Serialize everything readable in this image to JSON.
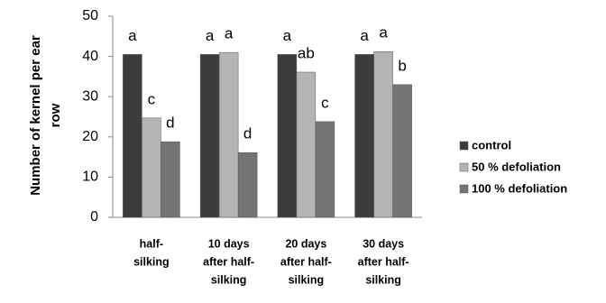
{
  "chart_data": {
    "type": "bar",
    "y_label": [
      "Number of kernel per ear",
      "row"
    ],
    "categories": [
      [
        "half-",
        "silking"
      ],
      [
        "10 days",
        "after half-",
        "silking"
      ],
      [
        "20 days",
        "after half-",
        "silking"
      ],
      [
        "30 days",
        "after half-",
        "silking"
      ]
    ],
    "series": [
      {
        "name": "control",
        "color": "#3c3c3c",
        "values": [
          40.5,
          40.5,
          40.5,
          40.5
        ],
        "letters": [
          "a",
          "a",
          "a",
          "a"
        ]
      },
      {
        "name": "50 % defoliation",
        "color": "#b4b4b4",
        "values": [
          24.7,
          41,
          36.1,
          41.2
        ],
        "letters": [
          "c",
          "a",
          "ab",
          "a"
        ]
      },
      {
        "name": "100 % defoliation",
        "color": "#747474",
        "values": [
          18.8,
          16.1,
          23.8,
          33
        ],
        "letters": [
          "d",
          "d",
          "c",
          "b"
        ]
      }
    ],
    "ylim": [
      0,
      50
    ],
    "yticks": [
      0,
      10,
      20,
      30,
      40,
      50
    ],
    "grid": false,
    "legend": "right"
  }
}
